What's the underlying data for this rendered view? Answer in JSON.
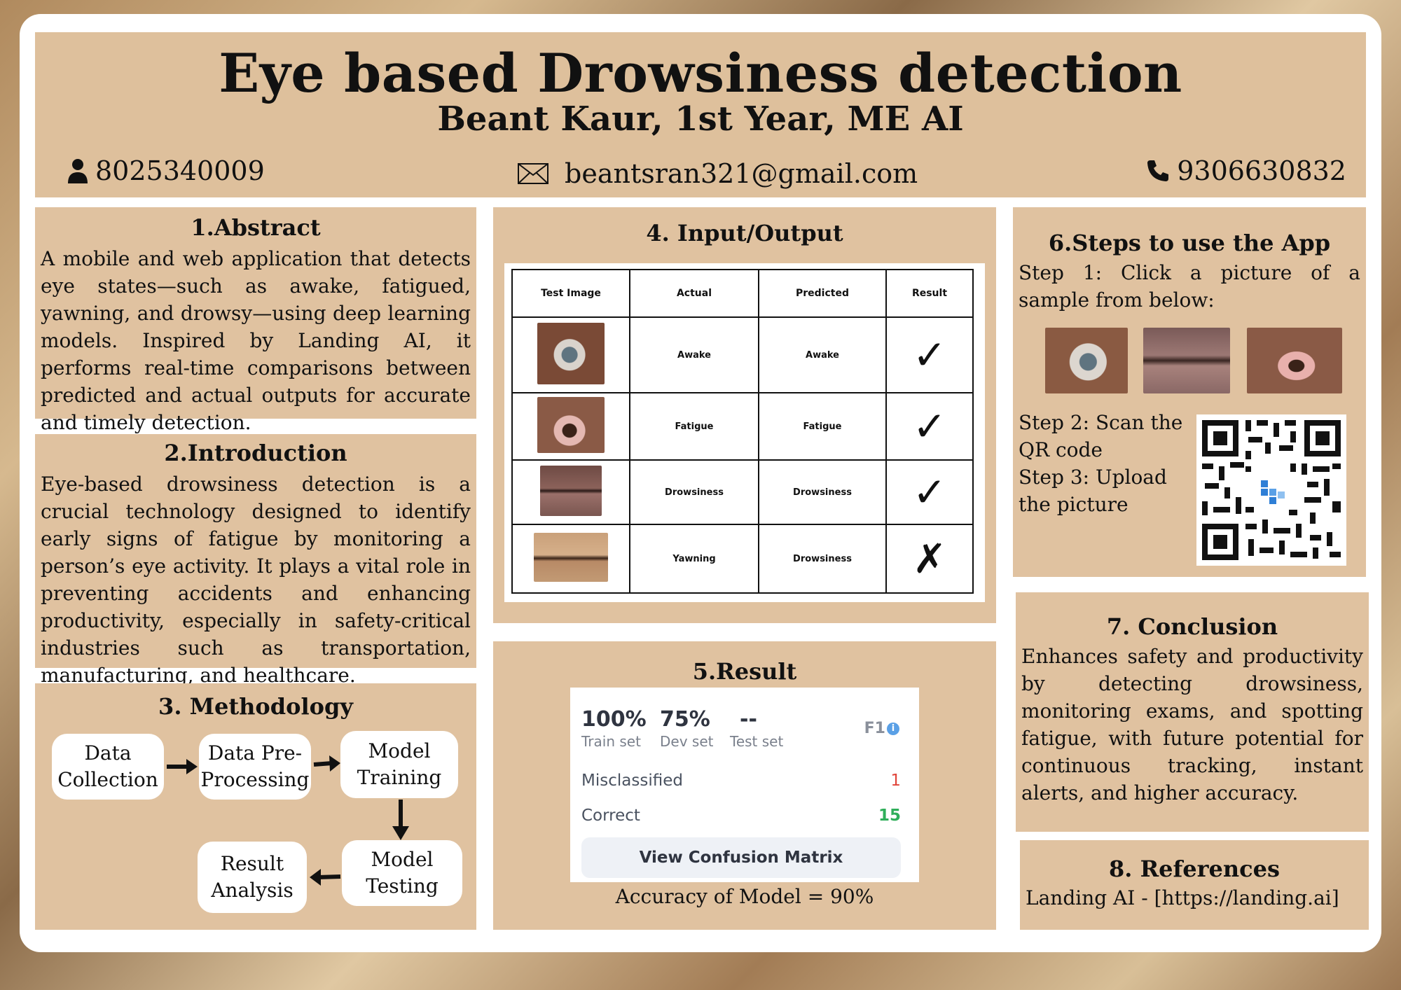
{
  "header": {
    "title": "Eye based Drowsiness detection",
    "subtitle": "Beant Kaur, 1st Year, ME AI",
    "phone_left": "8025340009",
    "email": "beantsran321@gmail.com",
    "phone_right": "9306630832"
  },
  "abstract": {
    "heading": "1.Abstract",
    "text": "A mobile and web application that detects eye states—such as awake, fatigued, yawning, and drowsy—using deep learning models. Inspired by Landing AI, it performs real-time comparisons between predicted and actual outputs for accurate and timely detection."
  },
  "introduction": {
    "heading": "2.Introduction",
    "text": "Eye-based drowsiness detection is a crucial technology designed to identify early signs of fatigue by monitoring a person’s eye activity. It plays a vital role in preventing accidents and enhancing productivity, especially in safety-critical industries such as transportation, manufacturing, and healthcare."
  },
  "methodology": {
    "heading": "3. Methodology",
    "steps": [
      "Data Collection",
      "Data Pre-Processing",
      "Model Training",
      "Model Testing",
      "Result Analysis"
    ]
  },
  "io": {
    "heading": "4. Input/Output",
    "columns": [
      "Test Image",
      "Actual",
      "Predicted",
      "Result"
    ],
    "rows": [
      {
        "actual": "Awake",
        "predicted": "Awake",
        "result": "✓"
      },
      {
        "actual": "Fatigue",
        "predicted": "Fatigue",
        "result": "✓"
      },
      {
        "actual": "Drowsiness",
        "predicted": "Drowsiness",
        "result": "✓"
      },
      {
        "actual": "Yawning",
        "predicted": "Drowsiness",
        "result": "✗"
      }
    ]
  },
  "result": {
    "heading": "5.Result",
    "train_value": "100%",
    "train_label": "Train set",
    "dev_value": "75%",
    "dev_label": "Dev set",
    "test_value": "--",
    "test_label": "Test set",
    "f1_label": "F1",
    "misclassified_label": "Misclassified",
    "misclassified_value": "1",
    "correct_label": "Correct",
    "correct_value": "15",
    "button_label": "View Confusion Matrix",
    "accuracy_text": "Accuracy of Model = 90%",
    "colors": {
      "misclassified": "#e0443a",
      "correct": "#2fae5a"
    }
  },
  "steps": {
    "heading": "6.Steps to use the App",
    "step1": "Step 1: Click a picture of a sample from below:",
    "step2": "Step 2: Scan the QR code",
    "step3": "Step 3: Upload the picture"
  },
  "conclusion": {
    "heading": "7. Conclusion",
    "text": "Enhances safety and productivity by detecting drowsiness, monitoring exams, and spotting fatigue, with future potential for continuous tracking, instant alerts, and higher accuracy."
  },
  "references": {
    "heading": "8. References",
    "text": "Landing AI - [https://landing.ai]"
  }
}
